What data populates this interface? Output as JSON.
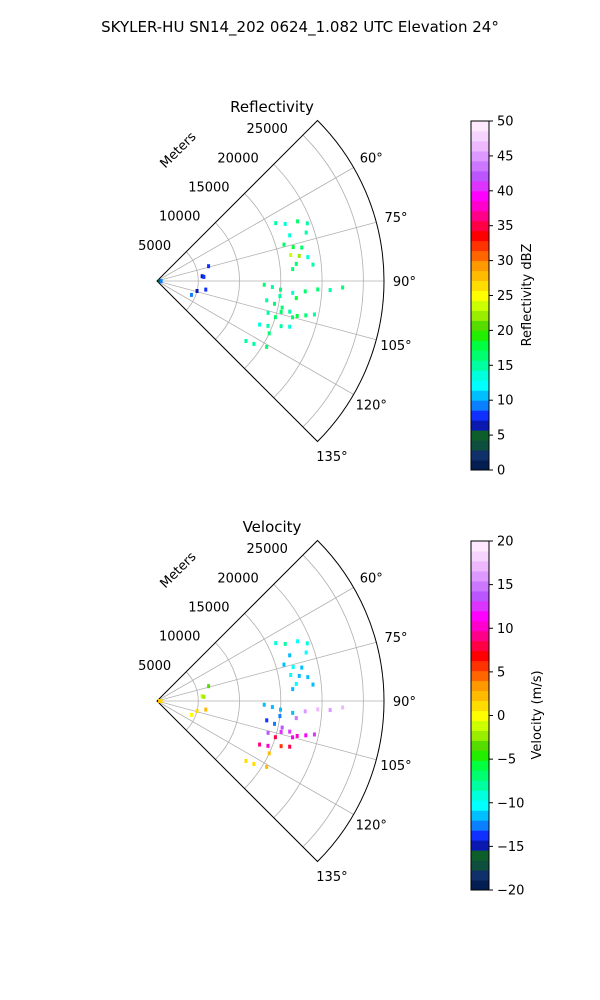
{
  "figure": {
    "suptitle": "SKYLER-HU  SN14_202  0624_1.082 UTC Elevation 24°"
  },
  "chart_data": [
    {
      "type": "polar-sector",
      "title": "Reflectivity",
      "range_label": "Meters",
      "range_max": 27500,
      "range_ticks": [
        5000,
        10000,
        15000,
        20000,
        25000
      ],
      "range_tick_labels": [
        "5000",
        "10000",
        "15000",
        "20000",
        "25000"
      ],
      "angle_range_deg": [
        45,
        135
      ],
      "angle_ticks": [
        "60°",
        "75°",
        "90°",
        "105°",
        "120°",
        "135°"
      ],
      "angle_tick_values": [
        60,
        75,
        90,
        105,
        120,
        135
      ],
      "grid": true,
      "colorbar": {
        "label": "Reflectivity dBZ",
        "min": 0,
        "max": 50,
        "ticks": [
          0,
          5,
          10,
          15,
          20,
          25,
          30,
          35,
          40,
          45,
          50
        ],
        "tick_labels": [
          "0",
          "5",
          "10",
          "15",
          "20",
          "25",
          "30",
          "35",
          "40",
          "45",
          "50"
        ],
        "palette": [
          "#041e52",
          "#10306a",
          "#0d4e3c",
          "#0e5e2c",
          "#0a1ab0",
          "#1030ff",
          "#0b80ff",
          "#00bfff",
          "#00ffff",
          "#00ffdd",
          "#00ffa0",
          "#00ff70",
          "#00ff40",
          "#22ee00",
          "#55dd00",
          "#99ee00",
          "#ccff00",
          "#ffff00",
          "#ffdd00",
          "#ffbb00",
          "#ff9900",
          "#ff6600",
          "#ff3300",
          "#ff0000",
          "#ff0044",
          "#ff0088",
          "#ff00cc",
          "#ff00ff",
          "#dd33ff",
          "#bb55ff",
          "#cc77ff",
          "#dd99ff",
          "#eeb8ff",
          "#f5d5ff",
          "#fde8ff"
        ]
      },
      "points": [
        {
          "range": 16000,
          "az": 64,
          "value": 15
        },
        {
          "range": 17000,
          "az": 66,
          "value": 14
        },
        {
          "range": 18500,
          "az": 67,
          "value": 16
        },
        {
          "range": 19500,
          "az": 69,
          "value": 15
        },
        {
          "range": 17000,
          "az": 71,
          "value": 13
        },
        {
          "range": 19000,
          "az": 72,
          "value": 15
        },
        {
          "range": 16000,
          "az": 74,
          "value": 16
        },
        {
          "range": 17000,
          "az": 76,
          "value": 18
        },
        {
          "range": 18000,
          "az": 77,
          "value": 17
        },
        {
          "range": 16500,
          "az": 79,
          "value": 23
        },
        {
          "range": 17500,
          "az": 80,
          "value": 22
        },
        {
          "range": 18500,
          "az": 81,
          "value": 14
        },
        {
          "range": 17000,
          "az": 83,
          "value": 16
        },
        {
          "range": 19000,
          "az": 84,
          "value": 15
        },
        {
          "range": 16500,
          "az": 85,
          "value": 17
        },
        {
          "range": 13000,
          "az": 92,
          "value": 16
        },
        {
          "range": 14000,
          "az": 93,
          "value": 15
        },
        {
          "range": 15000,
          "az": 94,
          "value": 16
        },
        {
          "range": 16500,
          "az": 95,
          "value": 14
        },
        {
          "range": 18000,
          "az": 94,
          "value": 17
        },
        {
          "range": 19500,
          "az": 93,
          "value": 16
        },
        {
          "range": 21000,
          "az": 93,
          "value": 15
        },
        {
          "range": 22500,
          "az": 92,
          "value": 16
        },
        {
          "range": 15000,
          "az": 97,
          "value": 15
        },
        {
          "range": 17000,
          "az": 97,
          "value": 18
        },
        {
          "range": 13500,
          "az": 100,
          "value": 15
        },
        {
          "range": 14500,
          "az": 101,
          "value": 16
        },
        {
          "range": 15500,
          "az": 102,
          "value": 17
        },
        {
          "range": 16500,
          "az": 103,
          "value": 15
        },
        {
          "range": 17500,
          "az": 104,
          "value": 18
        },
        {
          "range": 18500,
          "az": 103,
          "value": 16
        },
        {
          "range": 19500,
          "az": 102,
          "value": 15
        },
        {
          "range": 15500,
          "az": 104,
          "value": 16
        },
        {
          "range": 17000,
          "az": 105,
          "value": 17
        },
        {
          "range": 14000,
          "az": 106,
          "value": 15
        },
        {
          "range": 15000,
          "az": 107,
          "value": 16
        },
        {
          "range": 13500,
          "az": 113,
          "value": 14
        },
        {
          "range": 14500,
          "az": 112,
          "value": 15
        },
        {
          "range": 15000,
          "az": 115,
          "value": 16
        },
        {
          "range": 16000,
          "az": 110,
          "value": 15
        },
        {
          "range": 17000,
          "az": 109,
          "value": 14
        },
        {
          "range": 14000,
          "az": 123,
          "value": 15
        },
        {
          "range": 15500,
          "az": 121,
          "value": 16
        },
        {
          "range": 13000,
          "az": 124,
          "value": 15
        },
        {
          "range": 6500,
          "az": 74,
          "value": 8
        },
        {
          "range": 5500,
          "az": 84,
          "value": 6
        },
        {
          "range": 5700,
          "az": 85,
          "value": 8
        },
        {
          "range": 6000,
          "az": 100,
          "value": 8
        },
        {
          "range": 5000,
          "az": 104,
          "value": 7
        },
        {
          "range": 4500,
          "az": 112,
          "value": 9
        },
        {
          "range": 300,
          "az": 90,
          "value": 4
        },
        {
          "range": 500,
          "az": 92,
          "value": 9
        }
      ]
    },
    {
      "type": "polar-sector",
      "title": "Velocity",
      "range_label": "Meters",
      "range_max": 27500,
      "range_ticks": [
        5000,
        10000,
        15000,
        20000,
        25000
      ],
      "range_tick_labels": [
        "5000",
        "10000",
        "15000",
        "20000",
        "25000"
      ],
      "angle_range_deg": [
        45,
        135
      ],
      "angle_ticks": [
        "60°",
        "75°",
        "90°",
        "105°",
        "120°",
        "135°"
      ],
      "angle_tick_values": [
        60,
        75,
        90,
        105,
        120,
        135
      ],
      "grid": true,
      "colorbar": {
        "label": "Velocity (m/s)",
        "min": -20,
        "max": 20,
        "ticks": [
          -20,
          -15,
          -10,
          -5,
          0,
          5,
          10,
          15,
          20
        ],
        "tick_labels": [
          "−20",
          "−15",
          "−10",
          "−5",
          "0",
          "5",
          "10",
          "15",
          "20"
        ],
        "palette": [
          "#041e52",
          "#10306a",
          "#0d4e3c",
          "#0e5e2c",
          "#0a1ab0",
          "#1030ff",
          "#0b80ff",
          "#00bfff",
          "#00ffff",
          "#00ffdd",
          "#00ffa0",
          "#00ff70",
          "#00ff40",
          "#22ee00",
          "#55dd00",
          "#99ee00",
          "#ccff00",
          "#ffff00",
          "#ffdd00",
          "#ffbb00",
          "#ff9900",
          "#ff6600",
          "#ff3300",
          "#ff0000",
          "#ff0044",
          "#ff0088",
          "#ff00cc",
          "#ff00ff",
          "#dd33ff",
          "#bb55ff",
          "#cc77ff",
          "#dd99ff",
          "#eeb8ff",
          "#f5d5ff",
          "#fde8ff"
        ]
      },
      "points": [
        {
          "range": 16000,
          "az": 64,
          "value": -9
        },
        {
          "range": 17000,
          "az": 66,
          "value": -8
        },
        {
          "range": 18500,
          "az": 67,
          "value": -10
        },
        {
          "range": 19500,
          "az": 69,
          "value": -9
        },
        {
          "range": 17000,
          "az": 71,
          "value": -11
        },
        {
          "range": 19000,
          "az": 72,
          "value": -10
        },
        {
          "range": 16000,
          "az": 74,
          "value": -11
        },
        {
          "range": 17000,
          "az": 76,
          "value": -10
        },
        {
          "range": 18000,
          "az": 77,
          "value": -11
        },
        {
          "range": 16500,
          "az": 79,
          "value": -10
        },
        {
          "range": 17500,
          "az": 80,
          "value": -11
        },
        {
          "range": 18500,
          "az": 81,
          "value": -12
        },
        {
          "range": 17000,
          "az": 83,
          "value": -10
        },
        {
          "range": 19000,
          "az": 84,
          "value": -11
        },
        {
          "range": 16500,
          "az": 85,
          "value": -12
        },
        {
          "range": 13000,
          "az": 92,
          "value": -11
        },
        {
          "range": 14000,
          "az": 93,
          "value": -12
        },
        {
          "range": 15000,
          "az": 94,
          "value": -11
        },
        {
          "range": 16500,
          "az": 95,
          "value": -12
        },
        {
          "range": 18000,
          "az": 94,
          "value": 16
        },
        {
          "range": 19500,
          "az": 93,
          "value": 17
        },
        {
          "range": 21000,
          "az": 93,
          "value": 16
        },
        {
          "range": 22500,
          "az": 92,
          "value": 17
        },
        {
          "range": 15000,
          "az": 97,
          "value": -13
        },
        {
          "range": 17000,
          "az": 97,
          "value": 15
        },
        {
          "range": 13500,
          "az": 100,
          "value": -14
        },
        {
          "range": 14500,
          "az": 101,
          "value": -13
        },
        {
          "range": 15500,
          "az": 102,
          "value": 14
        },
        {
          "range": 16500,
          "az": 103,
          "value": 12
        },
        {
          "range": 17500,
          "az": 104,
          "value": 10
        },
        {
          "range": 18500,
          "az": 103,
          "value": 11
        },
        {
          "range": 19500,
          "az": 102,
          "value": 12
        },
        {
          "range": 15500,
          "az": 104,
          "value": 13
        },
        {
          "range": 17000,
          "az": 105,
          "value": 11
        },
        {
          "range": 14000,
          "az": 106,
          "value": 14
        },
        {
          "range": 15000,
          "az": 107,
          "value": 8
        },
        {
          "range": 13500,
          "az": 113,
          "value": 9
        },
        {
          "range": 14500,
          "az": 112,
          "value": 10
        },
        {
          "range": 15000,
          "az": 115,
          "value": 2
        },
        {
          "range": 16000,
          "az": 110,
          "value": 6
        },
        {
          "range": 17000,
          "az": 109,
          "value": 8
        },
        {
          "range": 14000,
          "az": 123,
          "value": 1
        },
        {
          "range": 15500,
          "az": 121,
          "value": 2
        },
        {
          "range": 13000,
          "az": 124,
          "value": 1
        },
        {
          "range": 6500,
          "az": 74,
          "value": -4
        },
        {
          "range": 5500,
          "az": 84,
          "value": -1
        },
        {
          "range": 5700,
          "az": 85,
          "value": -2
        },
        {
          "range": 6000,
          "az": 100,
          "value": 2
        },
        {
          "range": 5000,
          "az": 104,
          "value": 1
        },
        {
          "range": 4500,
          "az": 112,
          "value": 0
        },
        {
          "range": 300,
          "az": 90,
          "value": 2
        },
        {
          "range": 500,
          "az": 92,
          "value": 1
        }
      ]
    }
  ]
}
